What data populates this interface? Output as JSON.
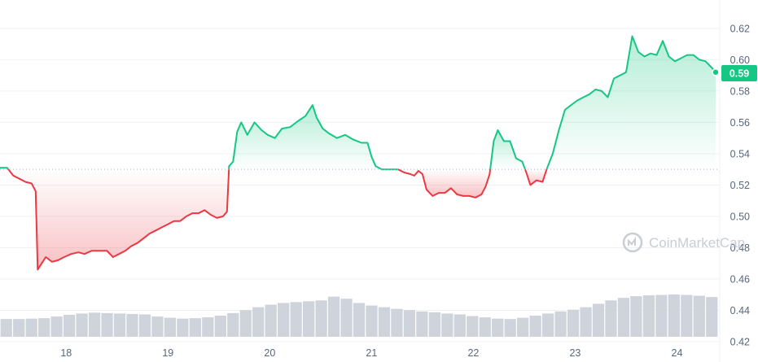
{
  "watermark": {
    "text": "CoinMarketCap",
    "icon": "coinmarketcap-logo-icon"
  },
  "current_price_label": "0.59",
  "chart_data": {
    "type": "line",
    "baseline": 0.53,
    "ylim": [
      0.42,
      0.635
    ],
    "y_ticks": [
      0.42,
      0.44,
      0.46,
      0.48,
      0.5,
      0.52,
      0.54,
      0.56,
      0.58,
      0.6,
      0.62
    ],
    "y_tick_labels": [
      "0.42",
      "0.44",
      "0.46",
      "0.48",
      "0.50",
      "0.52",
      "0.54",
      "0.56",
      "0.58",
      "0.60",
      "0.62"
    ],
    "x_ticks": [
      18,
      19,
      20,
      21,
      22,
      23,
      24
    ],
    "x_tick_labels": [
      "18",
      "19",
      "20",
      "21",
      "22",
      "23",
      "24"
    ],
    "xlim": [
      17.35,
      24.42
    ],
    "colors": {
      "up": "#16c784",
      "down": "#ea3943",
      "volume": "#cfd4dc",
      "grid": "#eff2f5",
      "baseline": "#a6b0c3"
    },
    "price_series": [
      [
        17.35,
        0.531
      ],
      [
        17.42,
        0.531
      ],
      [
        17.48,
        0.526
      ],
      [
        17.54,
        0.524
      ],
      [
        17.6,
        0.522
      ],
      [
        17.66,
        0.521
      ],
      [
        17.7,
        0.516
      ],
      [
        17.72,
        0.466
      ],
      [
        17.75,
        0.469
      ],
      [
        17.8,
        0.474
      ],
      [
        17.86,
        0.471
      ],
      [
        17.92,
        0.472
      ],
      [
        17.98,
        0.474
      ],
      [
        18.05,
        0.476
      ],
      [
        18.12,
        0.477
      ],
      [
        18.18,
        0.476
      ],
      [
        18.25,
        0.478
      ],
      [
        18.32,
        0.478
      ],
      [
        18.4,
        0.478
      ],
      [
        18.46,
        0.474
      ],
      [
        18.52,
        0.476
      ],
      [
        18.58,
        0.478
      ],
      [
        18.64,
        0.481
      ],
      [
        18.7,
        0.483
      ],
      [
        18.76,
        0.486
      ],
      [
        18.82,
        0.489
      ],
      [
        18.88,
        0.491
      ],
      [
        18.94,
        0.493
      ],
      [
        19.0,
        0.495
      ],
      [
        19.06,
        0.497
      ],
      [
        19.12,
        0.497
      ],
      [
        19.18,
        0.5
      ],
      [
        19.24,
        0.502
      ],
      [
        19.3,
        0.502
      ],
      [
        19.36,
        0.504
      ],
      [
        19.42,
        0.501
      ],
      [
        19.48,
        0.499
      ],
      [
        19.54,
        0.5
      ],
      [
        19.58,
        0.503
      ],
      [
        19.6,
        0.532
      ],
      [
        19.64,
        0.535
      ],
      [
        19.68,
        0.554
      ],
      [
        19.72,
        0.56
      ],
      [
        19.78,
        0.552
      ],
      [
        19.85,
        0.56
      ],
      [
        19.92,
        0.555
      ],
      [
        19.98,
        0.552
      ],
      [
        20.05,
        0.55
      ],
      [
        20.12,
        0.556
      ],
      [
        20.2,
        0.557
      ],
      [
        20.28,
        0.561
      ],
      [
        20.35,
        0.564
      ],
      [
        20.42,
        0.571
      ],
      [
        20.46,
        0.563
      ],
      [
        20.52,
        0.556
      ],
      [
        20.58,
        0.553
      ],
      [
        20.66,
        0.55
      ],
      [
        20.74,
        0.552
      ],
      [
        20.82,
        0.549
      ],
      [
        20.9,
        0.547
      ],
      [
        20.96,
        0.547
      ],
      [
        21.0,
        0.538
      ],
      [
        21.04,
        0.532
      ],
      [
        21.1,
        0.53
      ],
      [
        21.18,
        0.53
      ],
      [
        21.26,
        0.53
      ],
      [
        21.32,
        0.528
      ],
      [
        21.38,
        0.527
      ],
      [
        21.42,
        0.526
      ],
      [
        21.46,
        0.529
      ],
      [
        21.5,
        0.527
      ],
      [
        21.54,
        0.517
      ],
      [
        21.6,
        0.513
      ],
      [
        21.66,
        0.515
      ],
      [
        21.72,
        0.515
      ],
      [
        21.78,
        0.518
      ],
      [
        21.84,
        0.514
      ],
      [
        21.9,
        0.513
      ],
      [
        21.96,
        0.513
      ],
      [
        22.02,
        0.512
      ],
      [
        22.08,
        0.514
      ],
      [
        22.12,
        0.519
      ],
      [
        22.16,
        0.527
      ],
      [
        22.2,
        0.548
      ],
      [
        22.24,
        0.555
      ],
      [
        22.3,
        0.548
      ],
      [
        22.36,
        0.548
      ],
      [
        22.42,
        0.537
      ],
      [
        22.48,
        0.535
      ],
      [
        22.52,
        0.528
      ],
      [
        22.56,
        0.52
      ],
      [
        22.62,
        0.523
      ],
      [
        22.68,
        0.522
      ],
      [
        22.72,
        0.53
      ],
      [
        22.78,
        0.54
      ],
      [
        22.84,
        0.555
      ],
      [
        22.9,
        0.568
      ],
      [
        22.96,
        0.571
      ],
      [
        23.02,
        0.574
      ],
      [
        23.08,
        0.576
      ],
      [
        23.14,
        0.578
      ],
      [
        23.2,
        0.581
      ],
      [
        23.26,
        0.58
      ],
      [
        23.32,
        0.576
      ],
      [
        23.38,
        0.588
      ],
      [
        23.44,
        0.59
      ],
      [
        23.5,
        0.592
      ],
      [
        23.56,
        0.615
      ],
      [
        23.62,
        0.605
      ],
      [
        23.68,
        0.602
      ],
      [
        23.74,
        0.604
      ],
      [
        23.8,
        0.603
      ],
      [
        23.86,
        0.612
      ],
      [
        23.92,
        0.602
      ],
      [
        23.98,
        0.599
      ],
      [
        24.04,
        0.601
      ],
      [
        24.1,
        0.603
      ],
      [
        24.16,
        0.603
      ],
      [
        24.22,
        0.6
      ],
      [
        24.28,
        0.599
      ],
      [
        24.34,
        0.595
      ],
      [
        24.38,
        0.592
      ]
    ],
    "volume_series": [
      0.42,
      0.42,
      0.43,
      0.44,
      0.48,
      0.52,
      0.55,
      0.57,
      0.56,
      0.55,
      0.54,
      0.53,
      0.48,
      0.45,
      0.43,
      0.44,
      0.46,
      0.5,
      0.56,
      0.63,
      0.7,
      0.76,
      0.8,
      0.82,
      0.84,
      0.86,
      0.95,
      0.9,
      0.8,
      0.74,
      0.7,
      0.66,
      0.63,
      0.6,
      0.58,
      0.55,
      0.53,
      0.49,
      0.46,
      0.43,
      0.42,
      0.45,
      0.5,
      0.55,
      0.6,
      0.64,
      0.7,
      0.78,
      0.86,
      0.92,
      0.96,
      0.98,
      0.99,
      1.0,
      0.99,
      0.97,
      0.94
    ]
  }
}
